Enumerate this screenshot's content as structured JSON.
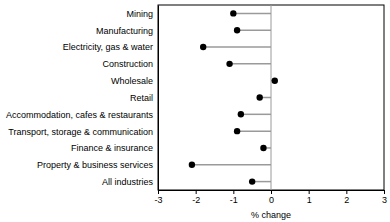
{
  "chart_data": {
    "type": "dot",
    "orientation": "horizontal",
    "categories": [
      "Mining",
      "Manufacturing",
      "Electricity, gas & water",
      "Construction",
      "Wholesale",
      "Retail",
      "Accommodation, cafes & restaurants",
      "Transport, storage & communication",
      "Finance & insurance",
      "Property & business services",
      "All industries"
    ],
    "values": [
      -1.0,
      -0.9,
      -1.8,
      -1.1,
      0.1,
      -0.3,
      -0.8,
      -0.9,
      -0.2,
      -2.1,
      -0.5
    ],
    "color": "#000000",
    "marker": "circle",
    "xlabel": "% change",
    "xlim": [
      -3,
      3
    ],
    "xticks": [
      -3,
      -2,
      -1,
      0,
      1,
      2,
      3
    ]
  }
}
